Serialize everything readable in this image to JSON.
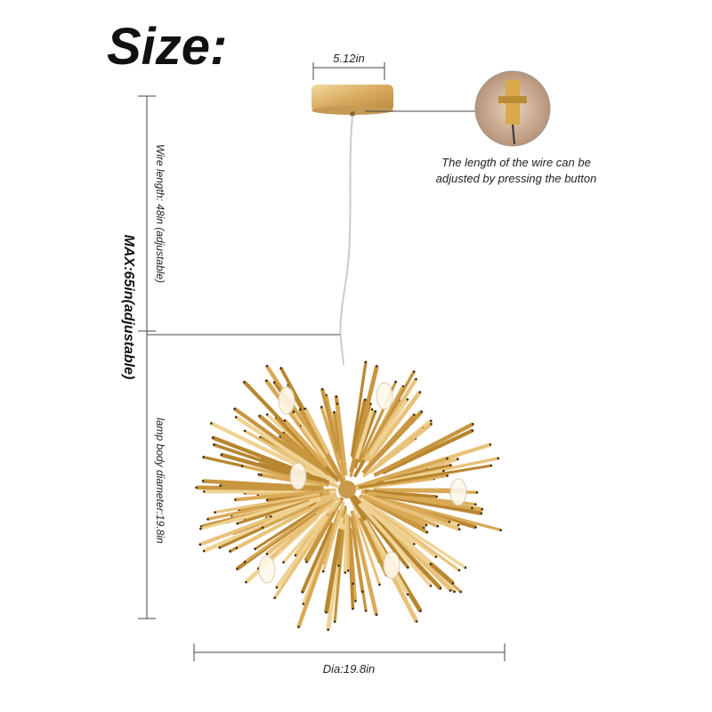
{
  "header": {
    "title": "Size:"
  },
  "dimensions": {
    "canopy_width": "5.12in",
    "wire_length": "Wire length: 48in (adjustable)",
    "max_length": "MAX:65in(adjustable)",
    "body_diameter_side": "lamp body diameter:19.8in",
    "body_diameter_bottom": "Dia:19.8in"
  },
  "callout": {
    "lines": [
      "The length of the wire can be",
      "adjusted by pressing the button"
    ]
  }
}
